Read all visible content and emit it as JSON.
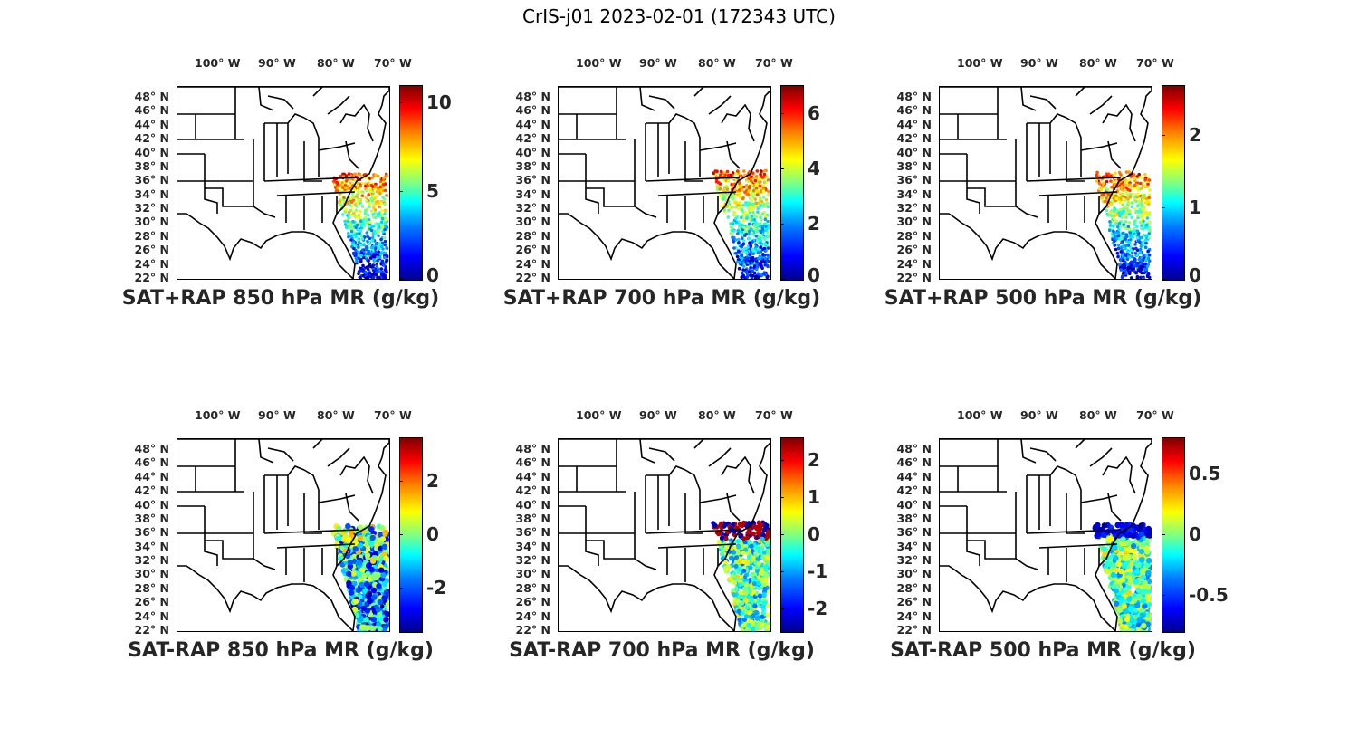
{
  "title": "CrIS-j01 2023-02-01 (172343 UTC)",
  "lon_ticks": [
    "100° W",
    "90° W",
    "80° W",
    "70° W"
  ],
  "lat_ticks": [
    "48° N",
    "46° N",
    "44° N",
    "42° N",
    "40° N",
    "38° N",
    "36° N",
    "34° N",
    "32° N",
    "30° N",
    "28° N",
    "26° N",
    "24° N",
    "22° N"
  ],
  "colormap": "jet",
  "panels": [
    {
      "title": "SAT+RAP 850 hPa MR (g/kg)",
      "colorbar": {
        "min": 0,
        "max": 11,
        "ticks": [
          "10",
          "5",
          "0"
        ],
        "tick_values": [
          10,
          5,
          0
        ]
      }
    },
    {
      "title": "SAT+RAP 700 hPa MR (g/kg)",
      "colorbar": {
        "min": 0,
        "max": 7,
        "ticks": [
          "6",
          "4",
          "2",
          "0"
        ],
        "tick_values": [
          6,
          4,
          2,
          0
        ]
      }
    },
    {
      "title": "SAT+RAP 500 hPa MR (g/kg)",
      "colorbar": {
        "min": 0,
        "max": 2.7,
        "ticks": [
          "2",
          "1",
          "0"
        ],
        "tick_values": [
          2,
          1,
          0
        ]
      }
    },
    {
      "title": "SAT-RAP 850 hPa MR (g/kg)",
      "colorbar": {
        "min": -3.6,
        "max": 3.6,
        "ticks": [
          "2",
          "0",
          "-2"
        ],
        "tick_values": [
          2,
          0,
          -2
        ]
      }
    },
    {
      "title": "SAT-RAP 700 hPa MR (g/kg)",
      "colorbar": {
        "min": -2.6,
        "max": 2.6,
        "ticks": [
          "2",
          "1",
          "0",
          "-1",
          "-2"
        ],
        "tick_values": [
          2,
          1,
          0,
          -1,
          -2
        ]
      }
    },
    {
      "title": "SAT-RAP 500 hPa MR (g/kg)",
      "colorbar": {
        "min": -0.8,
        "max": 0.8,
        "ticks": [
          "0.5",
          "0",
          "-0.5"
        ],
        "tick_values": [
          0.5,
          0,
          -0.5
        ]
      }
    }
  ]
}
